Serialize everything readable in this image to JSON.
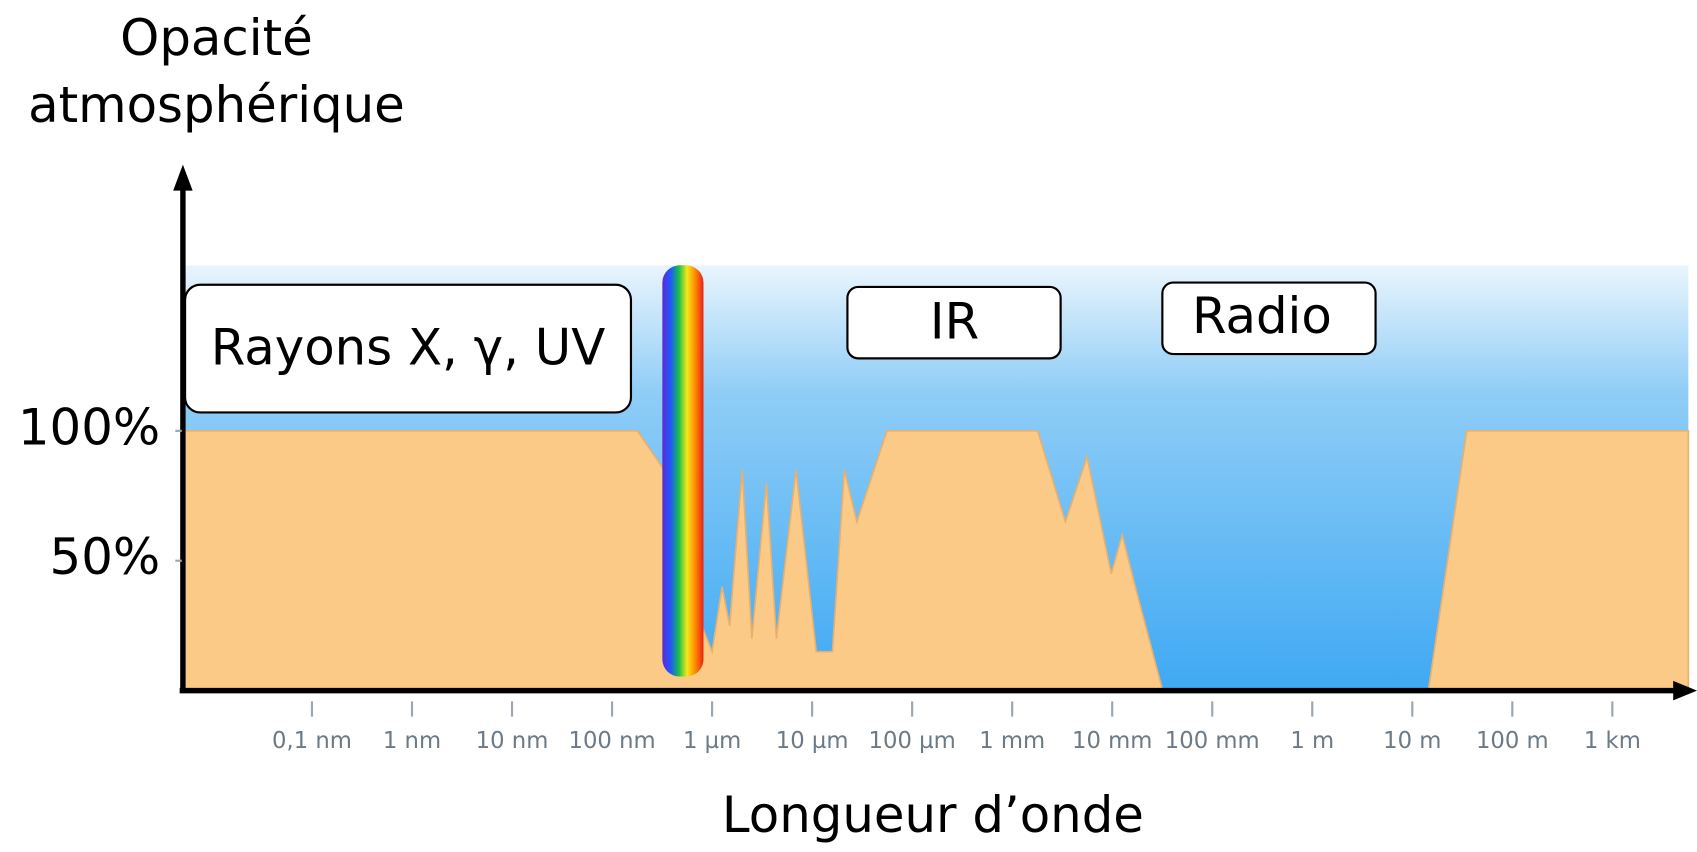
{
  "chart_data": {
    "type": "area",
    "y_label": [
      "Opacité",
      "atmosphérique"
    ],
    "x_label": "Longueur d’onde",
    "annotations": [
      "Rayons X, γ, UV",
      "IR",
      "Radio"
    ],
    "x": [
      5e-12,
      1.8e-07,
      3.3e-07,
      4.3e-07,
      5.1e-07,
      6.3e-07,
      7.9e-07,
      1e-06,
      1.26e-06,
      1.5e-06,
      2e-06,
      2.5e-06,
      3.5e-06,
      4.4e-06,
      6.9e-06,
      1.1e-05,
      1.6e-05,
      2.1e-05,
      2.8e-05,
      5.6e-05,
      0.0018,
      0.0034,
      0.0056,
      0.0098,
      0.0126,
      0.017,
      0.032,
      14.5,
      35,
      5750
    ],
    "values": [
      100,
      100,
      85,
      30,
      7,
      7,
      25,
      15,
      40,
      25,
      85,
      20,
      80,
      20,
      85,
      15,
      15,
      85,
      65,
      100,
      100,
      65,
      90,
      45,
      60,
      40,
      0,
      0,
      100,
      100
    ],
    "color": "#fbca86",
    "xscale": "log",
    "xlim": [
      5e-12,
      5750
    ],
    "ylim": [
      0,
      160
    ],
    "xticks": [
      {
        "value": 1e-10,
        "label": "0,1 nm"
      },
      {
        "value": 1e-09,
        "label": "1 nm"
      },
      {
        "value": 1e-08,
        "label": "10 nm"
      },
      {
        "value": 1e-07,
        "label": "100 nm"
      },
      {
        "value": 1e-06,
        "label": "1 µm"
      },
      {
        "value": 1e-05,
        "label": "10 µm"
      },
      {
        "value": 0.0001,
        "label": "100 µm"
      },
      {
        "value": 0.001,
        "label": "1 mm"
      },
      {
        "value": 0.01,
        "label": "10 mm"
      },
      {
        "value": 0.1,
        "label": "100 mm"
      },
      {
        "value": 1,
        "label": "1 m"
      },
      {
        "value": 10,
        "label": "10 m"
      },
      {
        "value": 100,
        "label": "100 m"
      },
      {
        "value": 1000,
        "label": "1 km"
      }
    ],
    "yticks": [
      {
        "value": 50,
        "label": "50%"
      },
      {
        "value": 100,
        "label": "100%"
      }
    ]
  }
}
